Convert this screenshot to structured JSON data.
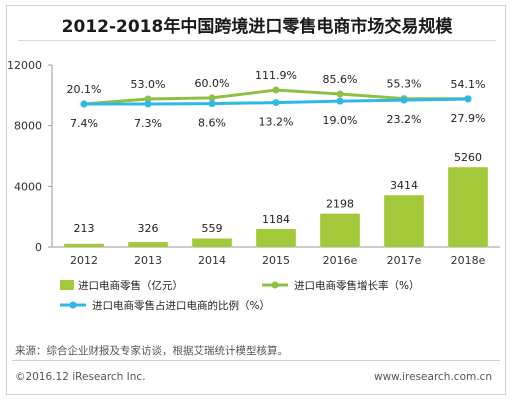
{
  "colors": {
    "bar": "#a3c93a",
    "growth_line": "#8fc043",
    "share_line": "#2fb8e6",
    "axis": "#999999"
  },
  "chart_data": {
    "type": "bar",
    "title": "2012-2018年中国跨境进口零售电商市场交易规模",
    "categories": [
      "2012",
      "2013",
      "2014",
      "2015",
      "2016e",
      "2017e",
      "2018e"
    ],
    "ylim": [
      0,
      12000
    ],
    "yticks": [
      0,
      4000,
      8000,
      12000
    ],
    "series": [
      {
        "name": "进口电商零售（亿元）",
        "type": "bar",
        "values": [
          213,
          326,
          559,
          1184,
          2198,
          3414,
          5260
        ],
        "labels": [
          "213",
          "326",
          "559",
          "1184",
          "2198",
          "3414",
          "5260"
        ]
      },
      {
        "name": "进口电商零售增长率（%）",
        "type": "line",
        "values": [
          20.1,
          53.0,
          60.0,
          111.9,
          85.6,
          55.3,
          54.1
        ],
        "labels": [
          "20.1%",
          "53.0%",
          "60.0%",
          "111.9%",
          "85.6%",
          "55.3%",
          "54.1%"
        ]
      },
      {
        "name": "进口电商零售占进口电商的比例（%）",
        "type": "line",
        "values": [
          7.4,
          7.3,
          8.6,
          13.2,
          19.0,
          23.2,
          27.9
        ],
        "labels": [
          "7.4%",
          "7.3%",
          "8.6%",
          "13.2%",
          "19.0%",
          "23.2%",
          "27.9%"
        ]
      }
    ],
    "legend_position": "bottom",
    "grid": false
  },
  "footer": {
    "source": "来源：综合企业财报及专家访谈，根据艾瑞统计模型核算。",
    "copyright": "©2016.12 iResearch Inc.",
    "website": "www.iresearch.com.cn"
  }
}
